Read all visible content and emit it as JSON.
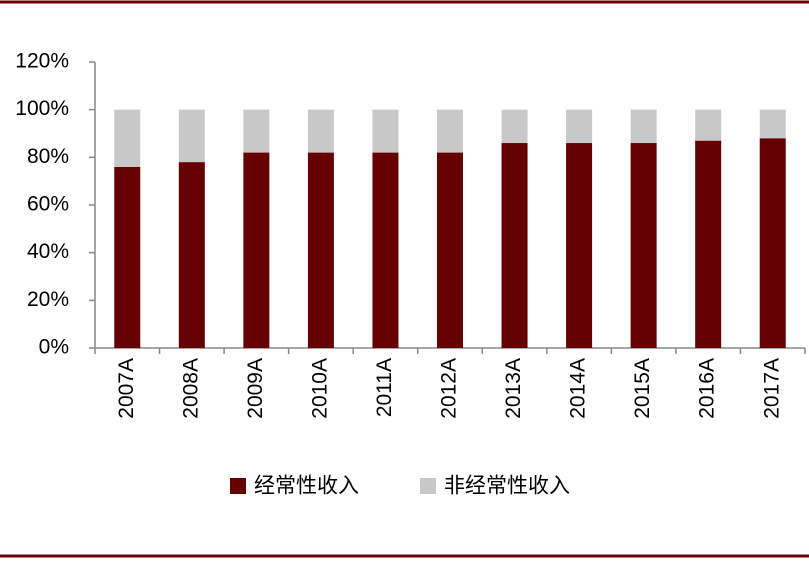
{
  "chart_data": {
    "type": "stacked-bar",
    "categories": [
      "2007A",
      "2008A",
      "2009A",
      "2010A",
      "2011A",
      "2012A",
      "2013A",
      "2014A",
      "2015A",
      "2016A",
      "2017A"
    ],
    "series": [
      {
        "name": "经常性收入",
        "color": "#660000",
        "values": [
          76,
          78,
          82,
          82,
          82,
          82,
          86,
          86,
          86,
          87,
          88
        ]
      },
      {
        "name": "非经常性收入",
        "color": "#c8c8c8",
        "values": [
          24,
          22,
          18,
          18,
          18,
          18,
          14,
          14,
          14,
          13,
          12
        ]
      }
    ],
    "ylim": [
      0,
      120
    ],
    "yticks": [
      {
        "value": 0,
        "label": "0%"
      },
      {
        "value": 20,
        "label": "20%"
      },
      {
        "value": 40,
        "label": "40%"
      },
      {
        "value": 60,
        "label": "60%"
      },
      {
        "value": 80,
        "label": "80%"
      },
      {
        "value": 100,
        "label": "100%"
      },
      {
        "value": 120,
        "label": "120%"
      }
    ],
    "legend": "bottom"
  }
}
